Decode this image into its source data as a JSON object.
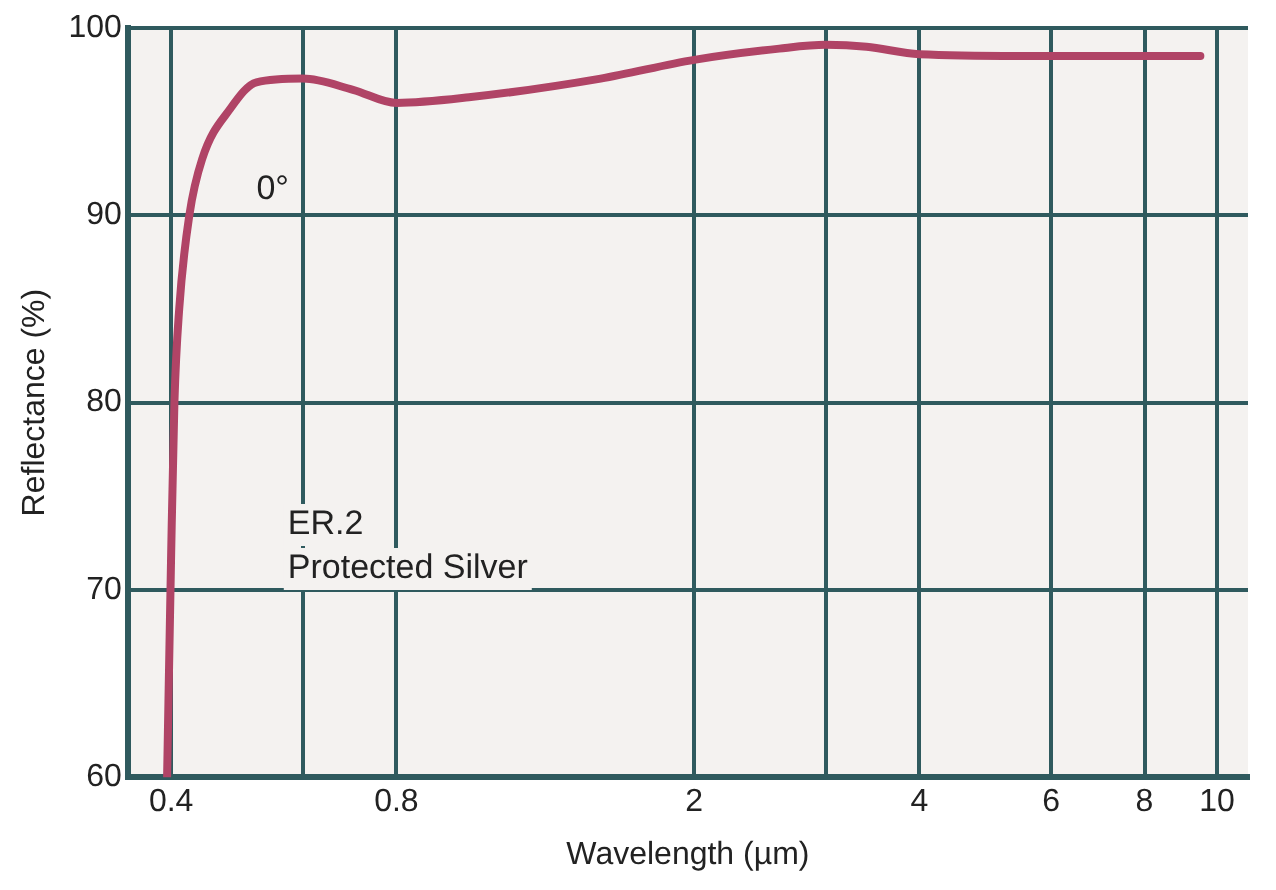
{
  "chart_data": {
    "type": "line",
    "xlabel": "Wavelength (µm)",
    "ylabel": "Reflectance (%)",
    "x": [
      0.395,
      0.4,
      0.404,
      0.41,
      0.423,
      0.44,
      0.48,
      0.52,
      0.6,
      0.7,
      0.8,
      1.0,
      1.5,
      2,
      2.6,
      3,
      3.4,
      4,
      6,
      8,
      9.5
    ],
    "series": [
      {
        "name": "0°",
        "color": "#b04466",
        "values": [
          60,
          72,
          80,
          85,
          90,
          93,
          95.7,
          97.1,
          97.3,
          96.7,
          96,
          96.3,
          97.3,
          98.3,
          98.9,
          99.1,
          99,
          98.6,
          98.5,
          98.5,
          98.5
        ]
      }
    ],
    "xlim": [
      0.35,
      11
    ],
    "xticks": [
      0.4,
      {
        "value": 0.6,
        "label": null
      },
      0.8,
      2,
      {
        "value": 3,
        "label": null
      },
      4,
      6,
      8,
      10
    ],
    "ylim": [
      60,
      100
    ],
    "yticks": [
      60,
      70,
      80,
      90,
      100
    ],
    "log": "x",
    "grid": true,
    "legend": false,
    "marker": "none",
    "line_style": "solid",
    "annotations": [
      "ER.2",
      "Protected Silver"
    ]
  }
}
